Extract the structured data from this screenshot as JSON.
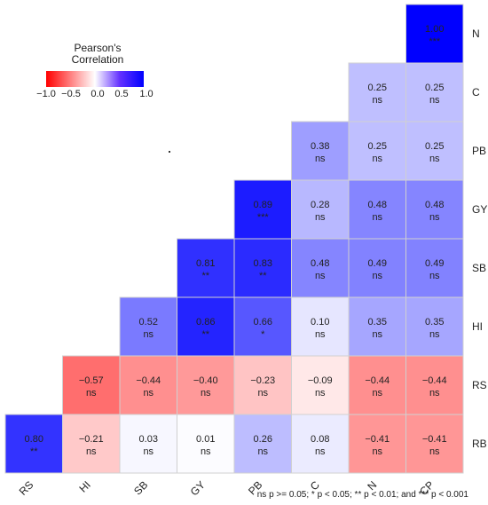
{
  "chart_data": {
    "type": "heatmap",
    "title": "",
    "rows": [
      "N",
      "C",
      "PB",
      "GY",
      "SB",
      "HI",
      "RS",
      "RB"
    ],
    "columns": [
      "RS",
      "HI",
      "SB",
      "GY",
      "PB",
      "C",
      "N",
      "CP"
    ],
    "color_scale": {
      "min": -1.0,
      "mid": 0.0,
      "max": 1.0,
      "low_color": "#ff0000",
      "mid_color": "#ffffff",
      "high_color": "#0000ff"
    },
    "cells": [
      {
        "row": "N",
        "col": "CP",
        "value": "1.00",
        "sig": "***"
      },
      {
        "row": "C",
        "col": "N",
        "value": "0.25",
        "sig": "ns"
      },
      {
        "row": "C",
        "col": "CP",
        "value": "0.25",
        "sig": "ns"
      },
      {
        "row": "PB",
        "col": "C",
        "value": "0.38",
        "sig": "ns"
      },
      {
        "row": "PB",
        "col": "N",
        "value": "0.25",
        "sig": "ns"
      },
      {
        "row": "PB",
        "col": "CP",
        "value": "0.25",
        "sig": "ns"
      },
      {
        "row": "GY",
        "col": "PB",
        "value": "0.89",
        "sig": "***"
      },
      {
        "row": "GY",
        "col": "C",
        "value": "0.28",
        "sig": "ns"
      },
      {
        "row": "GY",
        "col": "N",
        "value": "0.48",
        "sig": "ns"
      },
      {
        "row": "GY",
        "col": "CP",
        "value": "0.48",
        "sig": "ns"
      },
      {
        "row": "SB",
        "col": "GY",
        "value": "0.81",
        "sig": "**"
      },
      {
        "row": "SB",
        "col": "PB",
        "value": "0.83",
        "sig": "**"
      },
      {
        "row": "SB",
        "col": "C",
        "value": "0.48",
        "sig": "ns"
      },
      {
        "row": "SB",
        "col": "N",
        "value": "0.49",
        "sig": "ns"
      },
      {
        "row": "SB",
        "col": "CP",
        "value": "0.49",
        "sig": "ns"
      },
      {
        "row": "HI",
        "col": "SB",
        "value": "0.52",
        "sig": "ns"
      },
      {
        "row": "HI",
        "col": "GY",
        "value": "0.86",
        "sig": "**"
      },
      {
        "row": "HI",
        "col": "PB",
        "value": "0.66",
        "sig": "*"
      },
      {
        "row": "HI",
        "col": "C",
        "value": "0.10",
        "sig": "ns"
      },
      {
        "row": "HI",
        "col": "N",
        "value": "0.35",
        "sig": "ns"
      },
      {
        "row": "HI",
        "col": "CP",
        "value": "0.35",
        "sig": "ns"
      },
      {
        "row": "RS",
        "col": "HI",
        "value": "−0.57",
        "sig": "ns"
      },
      {
        "row": "RS",
        "col": "SB",
        "value": "−0.44",
        "sig": "ns"
      },
      {
        "row": "RS",
        "col": "GY",
        "value": "−0.40",
        "sig": "ns"
      },
      {
        "row": "RS",
        "col": "PB",
        "value": "−0.23",
        "sig": "ns"
      },
      {
        "row": "RS",
        "col": "C",
        "value": "−0.09",
        "sig": "ns"
      },
      {
        "row": "RS",
        "col": "N",
        "value": "−0.44",
        "sig": "ns"
      },
      {
        "row": "RS",
        "col": "CP",
        "value": "−0.44",
        "sig": "ns"
      },
      {
        "row": "RB",
        "col": "RS",
        "value": "0.80",
        "sig": "**"
      },
      {
        "row": "RB",
        "col": "HI",
        "value": "−0.21",
        "sig": "ns"
      },
      {
        "row": "RB",
        "col": "SB",
        "value": "0.03",
        "sig": "ns"
      },
      {
        "row": "RB",
        "col": "GY",
        "value": "0.01",
        "sig": "ns"
      },
      {
        "row": "RB",
        "col": "PB",
        "value": "0.26",
        "sig": "ns"
      },
      {
        "row": "RB",
        "col": "C",
        "value": "0.08",
        "sig": "ns"
      },
      {
        "row": "RB",
        "col": "N",
        "value": "−0.41",
        "sig": "ns"
      },
      {
        "row": "RB",
        "col": "CP",
        "value": "−0.41",
        "sig": "ns"
      }
    ],
    "legend": {
      "title_line1": "Pearson's",
      "title_line2": "Correlation",
      "ticks": [
        "−1.0",
        "−0.5",
        "0.0",
        "0.5",
        "1.0"
      ],
      "placement": "top-left"
    },
    "footnote": "ns p >= 0.05; * p < 0.05; ** p < 0.01; and *** p < 0.001"
  }
}
